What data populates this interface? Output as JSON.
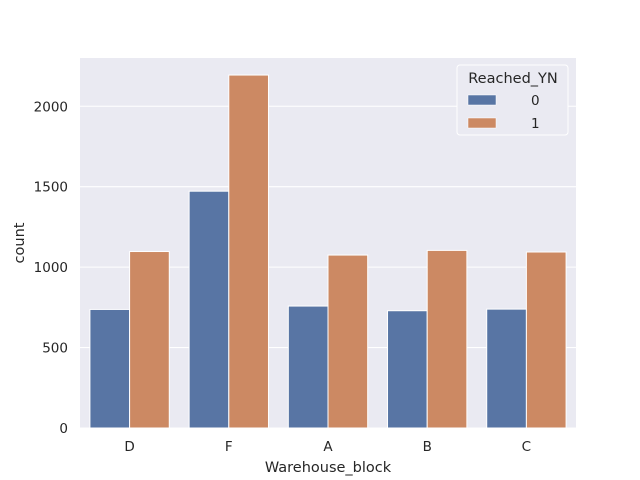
{
  "chart_data": {
    "type": "bar",
    "xlabel": "Warehouse_block",
    "ylabel": "count",
    "categories": [
      "D",
      "F",
      "A",
      "B",
      "C"
    ],
    "ylim": [
      0,
      2300
    ],
    "yticks": [
      0,
      500,
      1000,
      1500,
      2000
    ],
    "grid": true,
    "legend": {
      "title": "Reached_YN",
      "placement": "top-right"
    },
    "series": [
      {
        "name": "0",
        "color": "#5875a4",
        "values": [
          737,
          1472,
          758,
          729,
          739
        ]
      },
      {
        "name": "1",
        "color": "#cc8963",
        "values": [
          1097,
          2194,
          1075,
          1104,
          1094
        ]
      }
    ]
  }
}
